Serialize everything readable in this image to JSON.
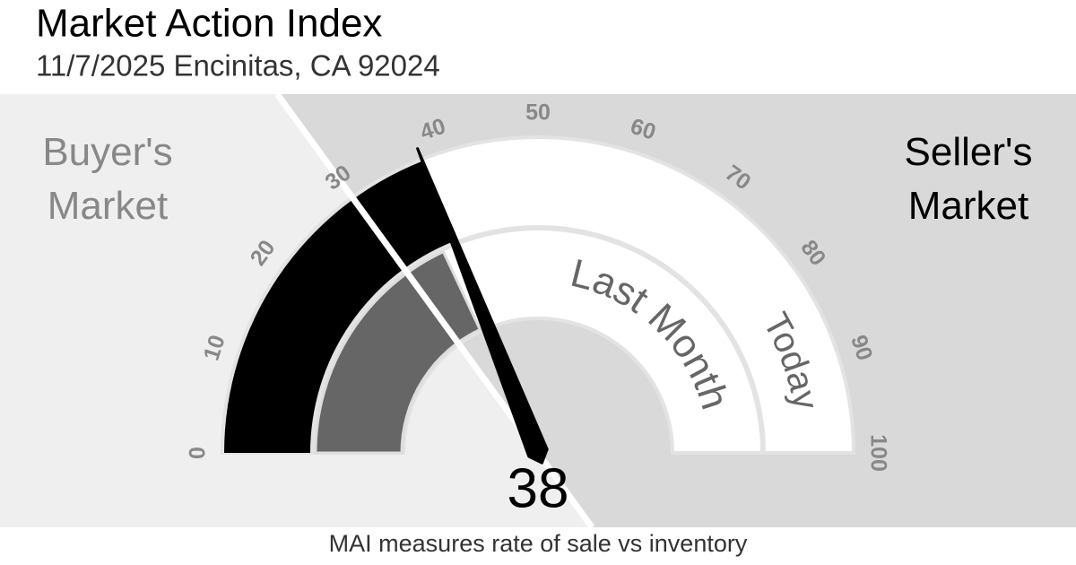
{
  "header": {
    "title": "Market Action Index",
    "subtitle": "11/7/2025 Encinitas, CA 92024"
  },
  "chart_data": {
    "type": "gauge",
    "range": [
      0,
      100
    ],
    "ticks": [
      0,
      10,
      20,
      30,
      40,
      50,
      60,
      70,
      80,
      90,
      100
    ],
    "threshold": 30,
    "zones": {
      "left": "Buyer's Market",
      "right": "Seller's Market"
    },
    "series": [
      {
        "name": "Today",
        "value": 38,
        "color": "#000000"
      },
      {
        "name": "Last Month",
        "value": 36,
        "color": "#666666"
      }
    ],
    "footnote": "MAI measures rate of sale vs inventory"
  }
}
